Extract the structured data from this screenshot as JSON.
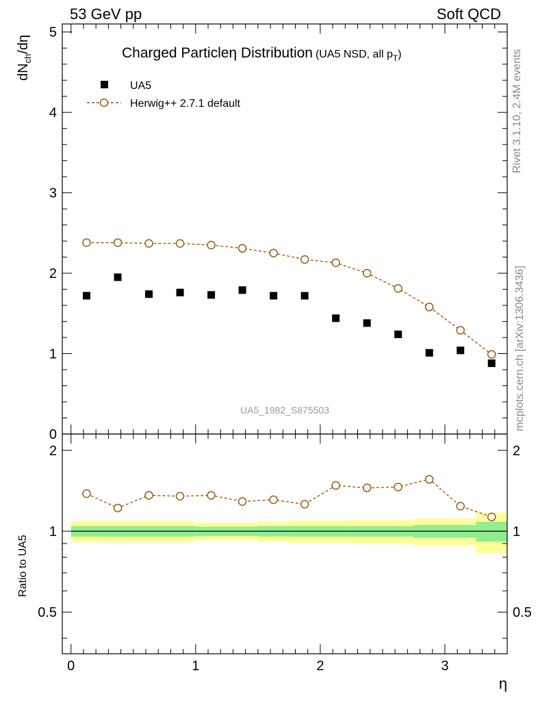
{
  "header": {
    "left": "53 GeV pp",
    "right": "Soft QCD"
  },
  "side_labels": {
    "rivet": "Rivet 3.1.10,  2.4M events",
    "mcplots": "mcplots.cern.ch [arXiv:1306.3436]"
  },
  "chart_data": {
    "type": "scatter",
    "title": "Charged Particleη Distribution",
    "title_suffix": "(UA5 NSD, all p",
    "title_suffix_sub": "T",
    "title_suffix_end": ")",
    "watermark": "UA5_1982_S875503",
    "xlabel": "η",
    "ylabel_main": "dN",
    "ylabel_sub": "ch",
    "ylabel_end": "/dη",
    "ylabel_ratio": "Ratio to UA5",
    "xlim": [
      -0.07,
      3.5
    ],
    "ylim_main": [
      0,
      5.1
    ],
    "ylim_ratio": [
      0.35,
      2.3
    ],
    "xticks": [
      "0",
      "1",
      "2",
      "3"
    ],
    "yticks_main": [
      "1",
      "2",
      "3",
      "4",
      "5"
    ],
    "ytick_zero": "0",
    "yticks_ratio": [
      "0.5",
      "1",
      "2"
    ],
    "legend_position": "top-left",
    "series": [
      {
        "name": "UA5",
        "marker": "filled-square",
        "color": "#000000",
        "x": [
          0.125,
          0.375,
          0.625,
          0.875,
          1.125,
          1.375,
          1.625,
          1.875,
          2.125,
          2.375,
          2.625,
          2.875,
          3.125,
          3.375
        ],
        "y": [
          1.72,
          1.95,
          1.74,
          1.76,
          1.73,
          1.79,
          1.72,
          1.72,
          1.44,
          1.38,
          1.24,
          1.01,
          1.04,
          0.88
        ]
      },
      {
        "name": "Herwig++ 2.7.1 default",
        "marker": "open-circle",
        "line": "dashed",
        "color": "#9c5a0e",
        "x": [
          0.125,
          0.375,
          0.625,
          0.875,
          1.125,
          1.375,
          1.625,
          1.875,
          2.125,
          2.375,
          2.625,
          2.875,
          3.125,
          3.375
        ],
        "y": [
          2.38,
          2.38,
          2.37,
          2.37,
          2.35,
          2.31,
          2.25,
          2.17,
          2.13,
          2.0,
          1.81,
          1.58,
          1.29,
          0.99
        ]
      }
    ],
    "ratio": {
      "x": [
        0.125,
        0.375,
        0.625,
        0.875,
        1.125,
        1.375,
        1.625,
        1.875,
        2.125,
        2.375,
        2.625,
        2.875,
        3.125,
        3.375
      ],
      "y": [
        1.38,
        1.22,
        1.36,
        1.35,
        1.36,
        1.29,
        1.31,
        1.26,
        1.48,
        1.45,
        1.46,
        1.56,
        1.24,
        1.13
      ],
      "bins": [
        {
          "lo": 0.0,
          "hi": 1.0,
          "inner": [
            0.955,
            1.045
          ],
          "outer": [
            0.91,
            1.09
          ]
        },
        {
          "lo": 1.0,
          "hi": 1.5,
          "inner": [
            0.96,
            1.04
          ],
          "outer": [
            0.925,
            1.075
          ]
        },
        {
          "lo": 1.5,
          "hi": 1.75,
          "inner": [
            0.955,
            1.045
          ],
          "outer": [
            0.915,
            1.085
          ]
        },
        {
          "lo": 1.75,
          "hi": 2.25,
          "inner": [
            0.955,
            1.045
          ],
          "outer": [
            0.905,
            1.095
          ]
        },
        {
          "lo": 2.25,
          "hi": 2.75,
          "inner": [
            0.955,
            1.045
          ],
          "outer": [
            0.9,
            1.1
          ]
        },
        {
          "lo": 2.75,
          "hi": 3.25,
          "inner": [
            0.945,
            1.055
          ],
          "outer": [
            0.885,
            1.115
          ]
        },
        {
          "lo": 3.25,
          "hi": 3.5,
          "inner": [
            0.915,
            1.085
          ],
          "outer": [
            0.83,
            1.17
          ]
        }
      ],
      "inner_color": "#90ee90",
      "outer_color": "#ffff99"
    }
  }
}
